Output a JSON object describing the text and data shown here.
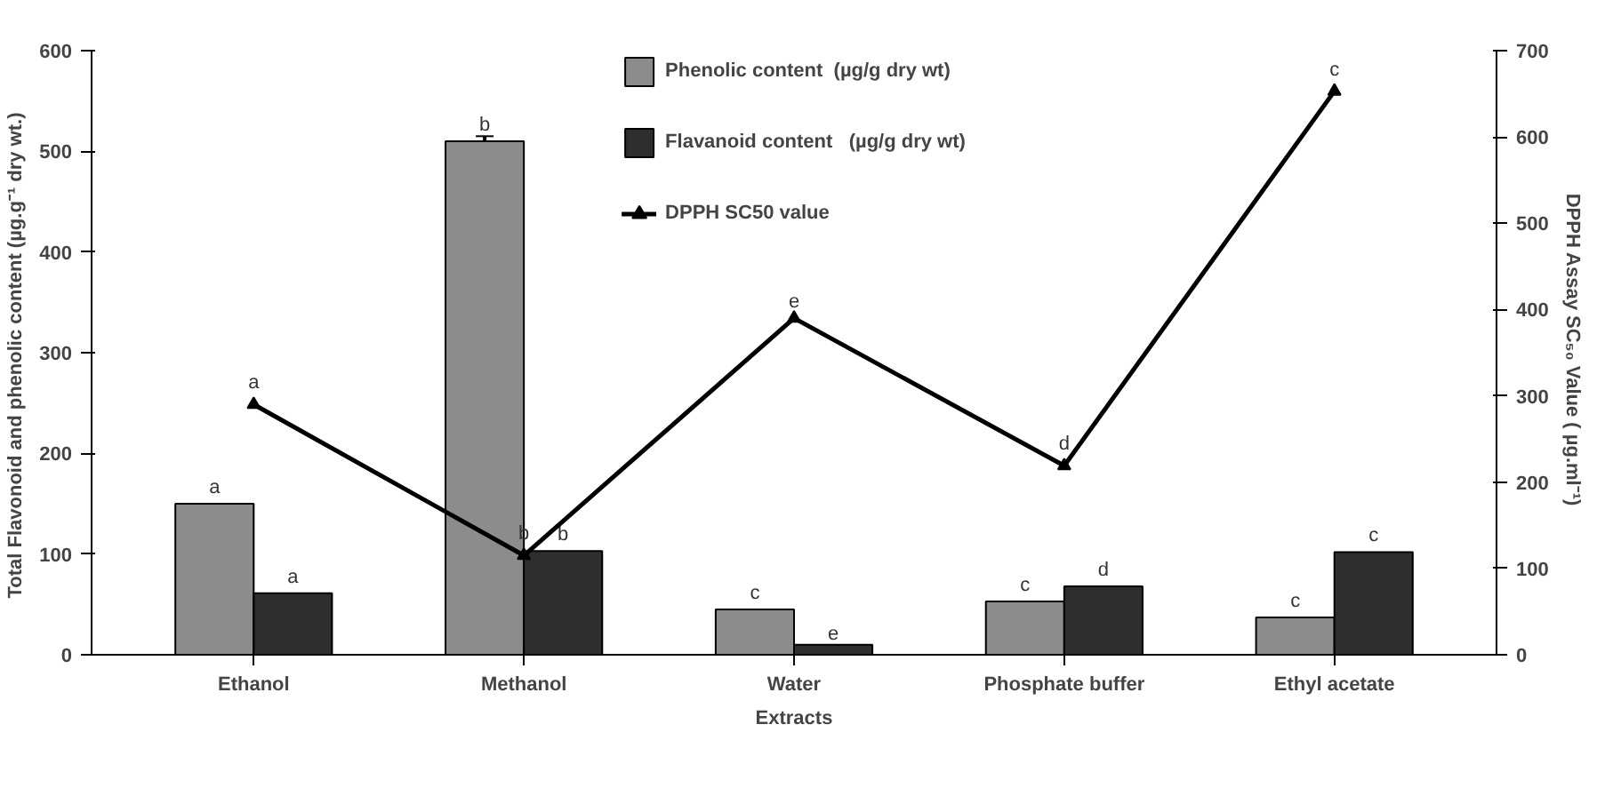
{
  "chart_data": {
    "type": "bar",
    "xlabel": "Extracts",
    "ylabel": "Total Flavonoid and phenolic content  (µg.g⁻¹ dry wt.)",
    "y2label": "DPPH Assay SC₅₀ Value (  µg.ml⁻¹)",
    "categories": [
      "Ethanol",
      "Methanol",
      "Water",
      "Phosphate buffer",
      "Ethyl acetate"
    ],
    "series": [
      {
        "name": "Phenolic content  (µg/g dry wt)",
        "color": "#8c8c8c",
        "values": [
          150,
          510,
          45,
          53,
          37
        ],
        "errors": [
          null,
          5,
          null,
          null,
          null
        ],
        "value_labels": [
          "a",
          "b",
          "c",
          "c",
          "c"
        ]
      },
      {
        "name": "Flavanoid content   (µg/g dry wt)",
        "color": "#2e2e2e",
        "values": [
          61,
          103,
          10,
          68,
          102
        ],
        "value_labels": [
          "a",
          "b",
          "e",
          "d",
          "c"
        ]
      },
      {
        "name": "DPPH SC50 value",
        "type": "line",
        "axis": "y2",
        "color": "#000000",
        "marker": "triangle",
        "values": [
          290,
          115,
          390,
          219,
          653
        ],
        "value_labels": [
          "a",
          "b",
          "e",
          "d",
          "c"
        ]
      }
    ],
    "ylim": [
      0,
      600
    ],
    "yticks": [
      0,
      100,
      200,
      300,
      400,
      500,
      600
    ],
    "y2lim": [
      0,
      700
    ],
    "y2ticks": [
      0,
      100,
      200,
      300,
      400,
      500,
      600,
      700
    ],
    "grid": false,
    "legend": "top"
  }
}
